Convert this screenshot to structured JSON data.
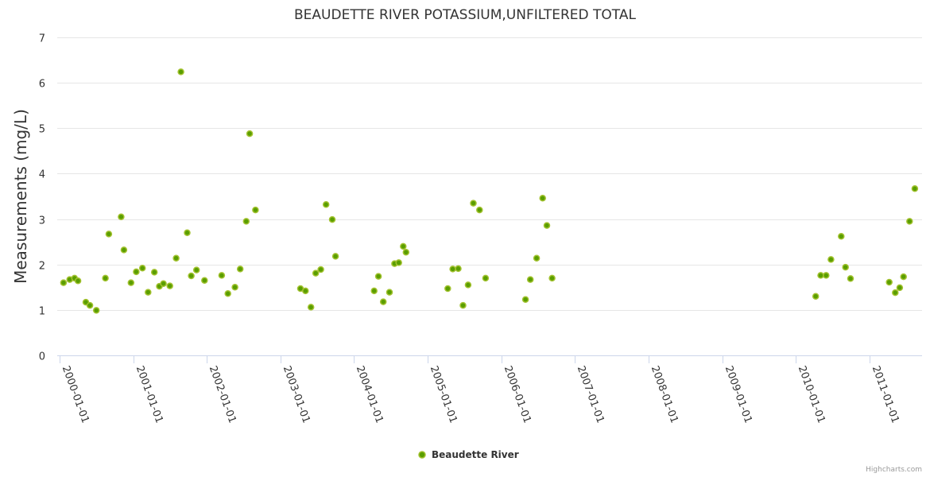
{
  "chart_data": {
    "type": "scatter",
    "title": "BEAUDETTE RIVER POTASSIUM,UNFILTERED TOTAL",
    "ylabel": "Measurements (mg/L)",
    "xlabel": "",
    "ylim": [
      0,
      7
    ],
    "yticks": [
      "0",
      "1",
      "2",
      "3",
      "4",
      "5",
      "6",
      "7"
    ],
    "xlim": [
      "1999-12-20",
      "2011-09-20"
    ],
    "xticks": [
      "2000-01-01",
      "2001-01-01",
      "2002-01-01",
      "2003-01-01",
      "2004-01-01",
      "2005-01-01",
      "2006-01-01",
      "2007-01-01",
      "2008-01-01",
      "2009-01-01",
      "2010-01-01",
      "2011-01-01"
    ],
    "grid": "horizontal",
    "legend_position": "bottom-center",
    "color": "#5a9e00",
    "series": [
      {
        "name": "Beaudette River",
        "points": [
          [
            "2000-01-20",
            1.6
          ],
          [
            "2000-02-20",
            1.67
          ],
          [
            "2000-03-15",
            1.7
          ],
          [
            "2000-04-01",
            1.64
          ],
          [
            "2000-05-10",
            1.17
          ],
          [
            "2000-05-30",
            1.1
          ],
          [
            "2000-07-01",
            0.99
          ],
          [
            "2000-08-15",
            1.7
          ],
          [
            "2000-09-01",
            2.67
          ],
          [
            "2000-11-01",
            3.05
          ],
          [
            "2000-11-15",
            2.32
          ],
          [
            "2000-12-20",
            1.6
          ],
          [
            "2001-01-15",
            1.84
          ],
          [
            "2001-02-15",
            1.92
          ],
          [
            "2001-03-15",
            1.39
          ],
          [
            "2001-04-15",
            1.83
          ],
          [
            "2001-05-10",
            1.52
          ],
          [
            "2001-05-30",
            1.58
          ],
          [
            "2001-07-01",
            1.53
          ],
          [
            "2001-08-01",
            2.14
          ],
          [
            "2001-08-25",
            6.24
          ],
          [
            "2001-09-25",
            2.7
          ],
          [
            "2001-10-15",
            1.75
          ],
          [
            "2001-11-10",
            1.88
          ],
          [
            "2001-12-20",
            1.65
          ],
          [
            "2002-03-15",
            1.76
          ],
          [
            "2002-04-15",
            1.36
          ],
          [
            "2002-05-20",
            1.5
          ],
          [
            "2002-06-15",
            1.9
          ],
          [
            "2002-07-15",
            2.95
          ],
          [
            "2002-08-01",
            4.88
          ],
          [
            "2002-08-30",
            3.2
          ],
          [
            "2003-04-10",
            1.47
          ],
          [
            "2003-05-05",
            1.42
          ],
          [
            "2003-06-01",
            1.06
          ],
          [
            "2003-06-25",
            1.81
          ],
          [
            "2003-07-20",
            1.89
          ],
          [
            "2003-08-15",
            3.32
          ],
          [
            "2003-09-15",
            2.99
          ],
          [
            "2003-10-01",
            2.18
          ],
          [
            "2004-04-10",
            1.42
          ],
          [
            "2004-05-01",
            1.74
          ],
          [
            "2004-05-25",
            1.18
          ],
          [
            "2004-06-25",
            1.39
          ],
          [
            "2004-07-20",
            2.02
          ],
          [
            "2004-08-10",
            2.04
          ],
          [
            "2004-09-01",
            2.4
          ],
          [
            "2004-09-15",
            2.27
          ],
          [
            "2005-04-10",
            1.47
          ],
          [
            "2005-05-05",
            1.9
          ],
          [
            "2005-06-01",
            1.91
          ],
          [
            "2005-06-25",
            1.1
          ],
          [
            "2005-07-20",
            1.55
          ],
          [
            "2005-08-15",
            3.35
          ],
          [
            "2005-09-15",
            3.2
          ],
          [
            "2005-10-15",
            1.7
          ],
          [
            "2006-05-01",
            1.23
          ],
          [
            "2006-05-25",
            1.67
          ],
          [
            "2006-06-25",
            2.14
          ],
          [
            "2006-07-25",
            3.46
          ],
          [
            "2006-08-15",
            2.86
          ],
          [
            "2006-09-10",
            1.7
          ],
          [
            "2010-04-10",
            1.3
          ],
          [
            "2010-05-05",
            1.76
          ],
          [
            "2010-06-01",
            1.76
          ],
          [
            "2010-06-25",
            2.11
          ],
          [
            "2010-08-15",
            2.62
          ],
          [
            "2010-09-05",
            1.94
          ],
          [
            "2010-09-30",
            1.69
          ],
          [
            "2011-04-10",
            1.61
          ],
          [
            "2011-05-10",
            1.38
          ],
          [
            "2011-06-01",
            1.49
          ],
          [
            "2011-06-20",
            1.73
          ],
          [
            "2011-07-20",
            2.95
          ],
          [
            "2011-08-15",
            3.67
          ]
        ]
      }
    ]
  },
  "credit": "Highcharts.com"
}
